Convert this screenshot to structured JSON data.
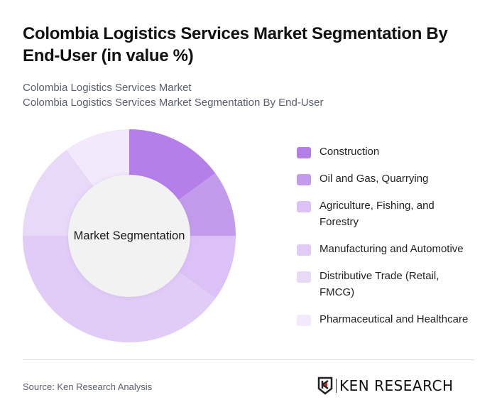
{
  "header": {
    "title": "Colombia Logistics Services Market Segmentation By End-User (in value %)",
    "subtitle_line1": "Colombia Logistics Services Market",
    "subtitle_line2": "Colombia Logistics Services Market Segmentation By End-User"
  },
  "chart_data": {
    "type": "pie",
    "variant": "donut",
    "title": "Colombia Logistics Services Market Segmentation By End-User (in value %)",
    "center_label": "Market Segmentation",
    "categories": [
      "Construction",
      "Oil and Gas, Quarrying",
      "Agriculture, Fishing, and Forestry",
      "Manufacturing and Automotive",
      "Distributive Trade (Retail, FMCG)",
      "Pharmaceutical and Healthcare"
    ],
    "values": [
      15,
      10,
      10,
      40,
      15,
      10
    ],
    "colors": [
      "#b57fe9",
      "#c39bec",
      "#dbc1f6",
      "#e0ccf7",
      "#e9d9f9",
      "#f2eafc"
    ],
    "legend_position": "right"
  },
  "legend": {
    "items": [
      {
        "label": "Construction",
        "color": "#b57fe9"
      },
      {
        "label": "Oil and Gas, Quarrying",
        "color": "#c39bec"
      },
      {
        "label": "Agriculture, Fishing, and Forestry",
        "color": "#dbc1f6"
      },
      {
        "label": "Manufacturing and Automotive",
        "color": "#e0ccf7"
      },
      {
        "label": "Distributive Trade (Retail, FMCG)",
        "color": "#e9d9f9"
      },
      {
        "label": "Pharmaceutical and Healthcare",
        "color": "#f2eafc"
      }
    ]
  },
  "footer": {
    "source": "Source: Ken Research Analysis",
    "logo_text": "KEN RESEARCH"
  }
}
